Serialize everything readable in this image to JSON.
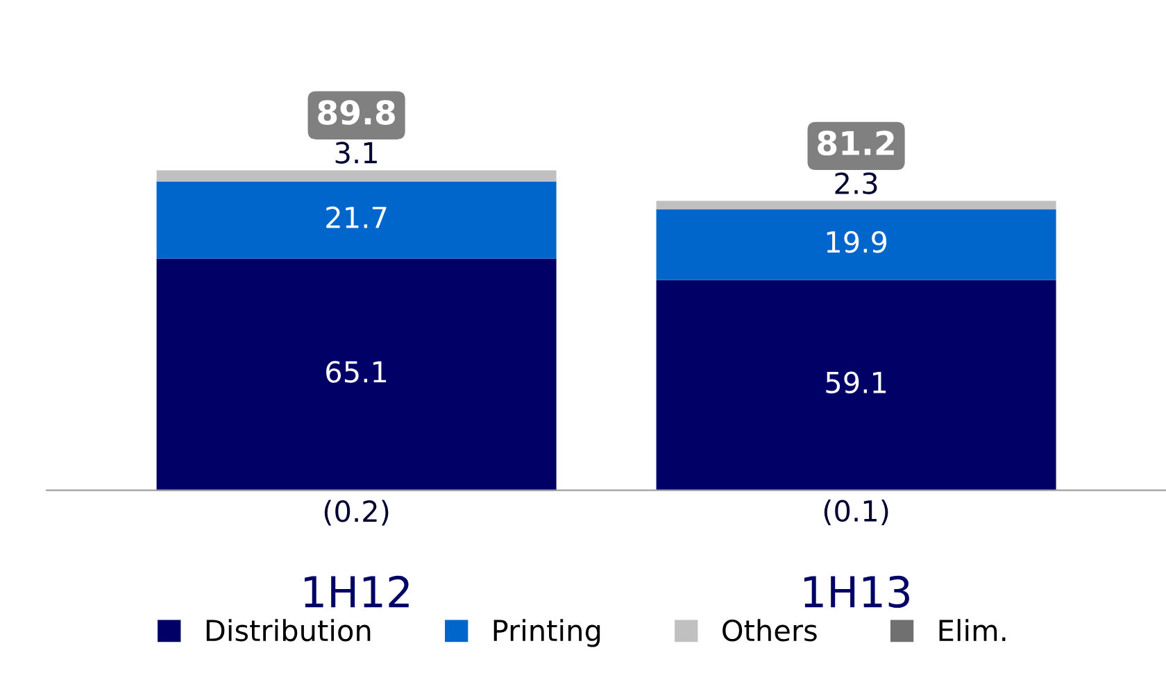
{
  "chart_data": {
    "type": "bar",
    "stacked": true,
    "categories": [
      "1H12",
      "1H13"
    ],
    "series": [
      {
        "name": "Distribution",
        "color": "#000066",
        "values": [
          65.1,
          59.1
        ],
        "value_labels": [
          "65.1",
          "59.1"
        ]
      },
      {
        "name": "Printing",
        "color": "#0066cc",
        "values": [
          21.7,
          19.9
        ],
        "value_labels": [
          "21.7",
          "19.9"
        ]
      },
      {
        "name": "Others",
        "color": "#c0c0c0",
        "values": [
          3.1,
          2.3
        ],
        "value_labels": [
          "3.1",
          "2.3"
        ]
      },
      {
        "name": "Elim.",
        "color": "#707070",
        "values": [
          -0.2,
          -0.1
        ],
        "value_labels": [
          "(0.2)",
          "(0.1)"
        ]
      }
    ],
    "totals": [
      "89.8",
      "81.2"
    ],
    "legend": "bottom",
    "grid": false
  }
}
